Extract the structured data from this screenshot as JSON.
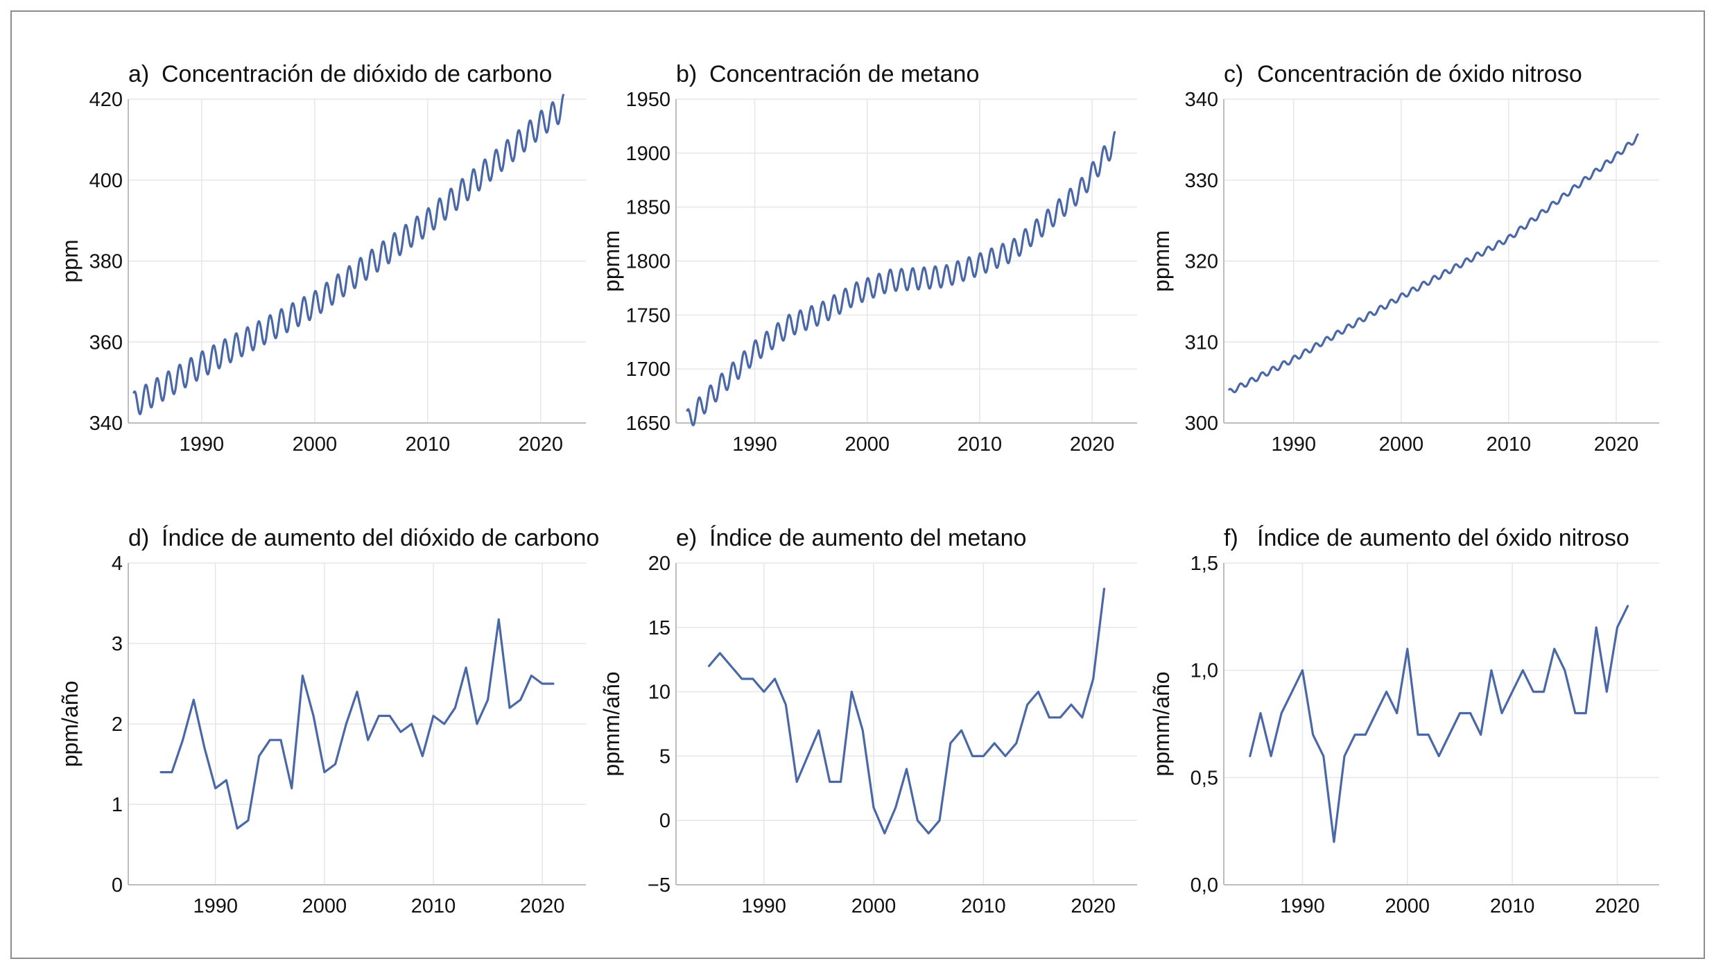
{
  "colors": {
    "line": "#4a67a6",
    "grid": "#e6e6e6",
    "axis": "#bdbdbd",
    "frame": "#8c8c8c"
  },
  "chart_data": [
    {
      "id": "a",
      "type": "line",
      "label": "a)",
      "title": "Concentración de dióxido de carbono",
      "ylabel": "ppm",
      "xlabel": "",
      "xlim": [
        1983.5,
        2024
      ],
      "ylim": [
        340,
        420
      ],
      "xticks": [
        1990,
        2000,
        2010,
        2020
      ],
      "xtick_labels": [
        "1990",
        "2000",
        "2010",
        "2020"
      ],
      "yticks": [
        340,
        360,
        380,
        400,
        420
      ],
      "ytick_labels": [
        "340",
        "360",
        "380",
        "400",
        "420"
      ],
      "grid": true,
      "series": [
        {
          "seasonal": true,
          "years": [
            1984,
            1990,
            2000,
            2010,
            2020,
            2022
          ],
          "trend": [
            344.5,
            354.4,
            369.3,
            389.7,
            413.8,
            418.0
          ],
          "amplitude": 3.2
        }
      ]
    },
    {
      "id": "b",
      "type": "line",
      "label": "b)",
      "title": "Concentración de metano",
      "ylabel": "ppmm",
      "xlabel": "",
      "xlim": [
        1983,
        2024
      ],
      "ylim": [
        1650,
        1950
      ],
      "xticks": [
        1990,
        2000,
        2010,
        2020
      ],
      "xtick_labels": [
        "1990",
        "2000",
        "2010",
        "2020"
      ],
      "yticks": [
        1650,
        1700,
        1750,
        1800,
        1850,
        1900,
        1950
      ],
      "ytick_labels": [
        "1650",
        "1700",
        "1750",
        "1800",
        "1850",
        "1900",
        "1950"
      ],
      "grid": true,
      "series": [
        {
          "seasonal": true,
          "years": [
            1984,
            1987,
            1990,
            1993,
            1996,
            1999,
            2002,
            2005,
            2007,
            2010,
            2013,
            2016,
            2019,
            2022
          ],
          "trend": [
            1652,
            1685,
            1716,
            1740,
            1752,
            1770,
            1782,
            1784,
            1786,
            1797,
            1810,
            1837,
            1866,
            1910
          ],
          "amplitude": 10
        }
      ]
    },
    {
      "id": "c",
      "type": "line",
      "label": "c)",
      "title": "Concentración de óxido nitroso",
      "ylabel": "ppmm",
      "xlabel": "",
      "xlim": [
        1983.5,
        2024
      ],
      "ylim": [
        300,
        340
      ],
      "xticks": [
        1990,
        2000,
        2010,
        2020
      ],
      "xtick_labels": [
        "1990",
        "2000",
        "2010",
        "2020"
      ],
      "yticks": [
        300,
        310,
        320,
        330,
        340
      ],
      "ytick_labels": [
        "300",
        "310",
        "320",
        "330",
        "340"
      ],
      "grid": true,
      "series": [
        {
          "seasonal": true,
          "years": [
            1984,
            1990,
            2000,
            2010,
            2020,
            2022
          ],
          "trend": [
            303.8,
            307.9,
            315.6,
            322.8,
            333.0,
            335.3
          ],
          "amplitude": 0.35
        }
      ]
    },
    {
      "id": "d",
      "type": "line",
      "label": "d)",
      "title": "Índice de aumento del dióxido de carbono",
      "ylabel": "ppm/año",
      "xlabel": "",
      "xlim": [
        1982,
        2024
      ],
      "ylim": [
        0,
        4
      ],
      "xticks": [
        1990,
        2000,
        2010,
        2020
      ],
      "xtick_labels": [
        "1990",
        "2000",
        "2010",
        "2020"
      ],
      "yticks": [
        0,
        1,
        2,
        3,
        4
      ],
      "ytick_labels": [
        "0",
        "1",
        "2",
        "3",
        "4"
      ],
      "grid": true,
      "series": [
        {
          "x": [
            1985,
            1986,
            1987,
            1988,
            1989,
            1990,
            1991,
            1992,
            1993,
            1994,
            1995,
            1996,
            1997,
            1998,
            1999,
            2000,
            2001,
            2002,
            2003,
            2004,
            2005,
            2006,
            2007,
            2008,
            2009,
            2010,
            2011,
            2012,
            2013,
            2014,
            2015,
            2016,
            2017,
            2018,
            2019,
            2020,
            2021
          ],
          "y": [
            1.4,
            1.4,
            1.8,
            2.3,
            1.7,
            1.2,
            1.3,
            0.7,
            0.8,
            1.6,
            1.8,
            1.8,
            1.2,
            2.6,
            2.1,
            1.4,
            1.5,
            2.0,
            2.4,
            1.8,
            2.1,
            2.1,
            1.9,
            2.0,
            1.6,
            2.1,
            2.0,
            2.2,
            2.7,
            2.0,
            2.3,
            3.3,
            2.2,
            2.3,
            2.6,
            2.5,
            2.5
          ]
        }
      ]
    },
    {
      "id": "e",
      "type": "line",
      "label": "e)",
      "title": "Índice de aumento del metano",
      "ylabel": "ppmm/año",
      "xlabel": "",
      "xlim": [
        1982,
        2024
      ],
      "ylim": [
        -5,
        20
      ],
      "xticks": [
        1990,
        2000,
        2010,
        2020
      ],
      "xtick_labels": [
        "1990",
        "2000",
        "2010",
        "2020"
      ],
      "yticks": [
        -5,
        0,
        5,
        10,
        15,
        20
      ],
      "ytick_labels": [
        "−5",
        "0",
        "5",
        "10",
        "15",
        "20"
      ],
      "grid": true,
      "series": [
        {
          "x": [
            1985,
            1986,
            1987,
            1988,
            1989,
            1990,
            1991,
            1992,
            1993,
            1994,
            1995,
            1996,
            1997,
            1998,
            1999,
            2000,
            2001,
            2002,
            2003,
            2004,
            2005,
            2006,
            2007,
            2008,
            2009,
            2010,
            2011,
            2012,
            2013,
            2014,
            2015,
            2016,
            2017,
            2018,
            2019,
            2020,
            2021
          ],
          "y": [
            12,
            13,
            12,
            11,
            11,
            10,
            11,
            9,
            3,
            5,
            7,
            3,
            3,
            10,
            7,
            1,
            -1,
            1,
            4,
            0,
            -1,
            0,
            6,
            7,
            5,
            5,
            6,
            5,
            6,
            9,
            10,
            8,
            8,
            9,
            8,
            11,
            18
          ]
        }
      ]
    },
    {
      "id": "f",
      "type": "line",
      "label": "f)",
      "title": "Índice de aumento del óxido nitroso",
      "ylabel": "ppmm/año",
      "xlabel": "",
      "xlim": [
        1982.5,
        2024
      ],
      "ylim": [
        0,
        1.5
      ],
      "xticks": [
        1990,
        2000,
        2010,
        2020
      ],
      "xtick_labels": [
        "1990",
        "2000",
        "2010",
        "2020"
      ],
      "yticks": [
        0,
        0.5,
        1.0,
        1.5
      ],
      "ytick_labels": [
        "0,0",
        "0,5",
        "1,0",
        "1,5"
      ],
      "grid": true,
      "series": [
        {
          "x": [
            1985,
            1986,
            1987,
            1988,
            1989,
            1990,
            1991,
            1992,
            1993,
            1994,
            1995,
            1996,
            1997,
            1998,
            1999,
            2000,
            2001,
            2002,
            2003,
            2004,
            2005,
            2006,
            2007,
            2008,
            2009,
            2010,
            2011,
            2012,
            2013,
            2014,
            2015,
            2016,
            2017,
            2018,
            2019,
            2020,
            2021
          ],
          "y": [
            0.6,
            0.8,
            0.6,
            0.8,
            0.9,
            1.0,
            0.7,
            0.6,
            0.2,
            0.6,
            0.7,
            0.7,
            0.8,
            0.9,
            0.8,
            1.1,
            0.7,
            0.7,
            0.6,
            0.7,
            0.8,
            0.8,
            0.7,
            1.0,
            0.8,
            0.9,
            1.0,
            0.9,
            0.9,
            1.1,
            1.0,
            0.8,
            0.8,
            1.2,
            0.9,
            1.2,
            1.3
          ]
        }
      ]
    }
  ]
}
